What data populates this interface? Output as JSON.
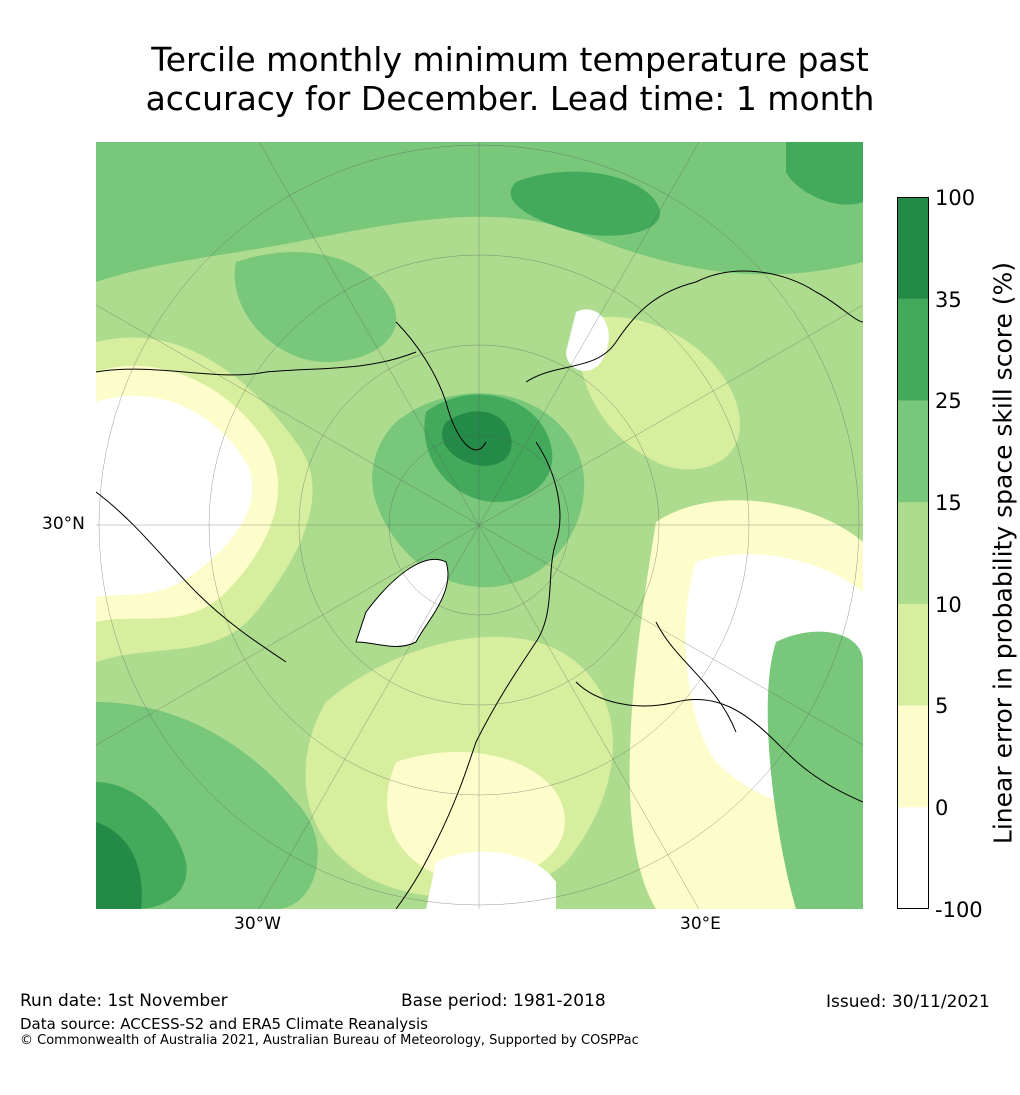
{
  "title": {
    "line1": "Tercile monthly minimum temperature past",
    "line2": "accuracy for December. Lead time: 1 month"
  },
  "map": {
    "lat_label": "30°N",
    "lon_labels": [
      "30°W",
      "30°E"
    ]
  },
  "colorbar": {
    "label": "Linear error in probability space skill score (%)",
    "ticks": [
      "100",
      "35",
      "25",
      "15",
      "10",
      "5",
      "0",
      "-100"
    ],
    "colors": [
      "#238a48",
      "#43aa5c",
      "#79c77b",
      "#aedc8f",
      "#d6ee9e",
      "#fdfdcb",
      "#ffffff"
    ]
  },
  "footer": {
    "run_date": "Run date: 1st November",
    "base_period": "Base period: 1981-2018",
    "issued": "Issued: 30/11/2021",
    "data_source": "Data source: ACCESS-S2 and ERA5 Climate Reanalysis",
    "copyright": "© Commonwealth of Australia 2021, Australian Bureau of Meteorology, Supported by COSPPac"
  }
}
